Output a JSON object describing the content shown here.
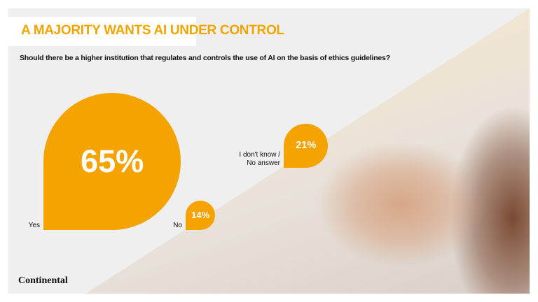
{
  "title": "A MAJORITY WANTS AI UNDER CONTROL",
  "question": "Should there be a higher institution that regulates and controls the use of AI on the basis of ethics guidelines?",
  "brand": "Continental",
  "colors": {
    "accent": "#f4a300",
    "title": "#f0a500",
    "background": "#efefef"
  },
  "chart_data": {
    "type": "bubble",
    "categories": [
      "Yes",
      "No",
      "I don't know / No answer"
    ],
    "values": [
      65,
      14,
      21
    ],
    "value_labels": [
      "65%",
      "14%",
      "21%"
    ],
    "unit": "%"
  }
}
